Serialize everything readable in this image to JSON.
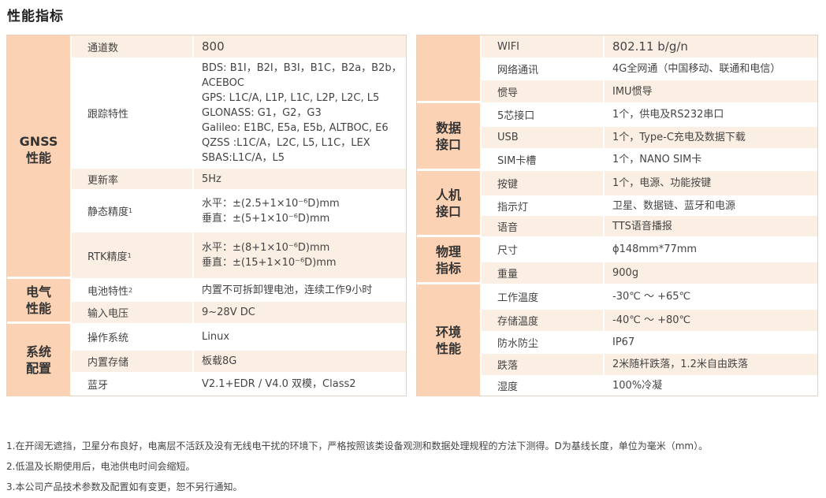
{
  "title": "性能指标",
  "left_table": {
    "categories": [
      {
        "label": "GNSS\n性能"
      },
      {
        "label": "电气\n性能"
      },
      {
        "label": "系统\n配置"
      }
    ],
    "rows": [
      {
        "label": "通道数",
        "value": "800"
      },
      {
        "label": "跟踪特性",
        "value": "BDS: B1I，B2I，B3I，B1C，B2a，B2b，\nACEBOC\nGPS: L1C/A, L1P, L1C, L2P, L2C, L5\nGLONASS: G1，G2，G3\nGalileo: E1BC, E5a, E5b, ALTBOC, E6\nQZSS :L1C/A，L2C, L5, L1C，LEX\nSBAS:L1C/A，L5"
      },
      {
        "label": "更新率",
        "value": "5Hz"
      },
      {
        "label": "静态精度",
        "sup": "1",
        "value": "水平：±(2.5+1×10⁻⁶D)mm\n垂直：±(5+1×10⁻⁶D)mm"
      },
      {
        "label": "RTK精度",
        "sup": "1",
        "value": "水平：±(8+1×10⁻⁶D)mm\n垂直：±(15+1×10⁻⁶D)mm"
      },
      {
        "label": "电池特性",
        "sup": "2",
        "value": "内置不可拆卸锂电池，连续工作9小时"
      },
      {
        "label": "输入电压",
        "value": "9~28V DC"
      },
      {
        "label": "操作系统",
        "value": "Linux"
      },
      {
        "label": "内置存储",
        "value": "板载8G"
      },
      {
        "label": "蓝牙",
        "value": "V2.1+EDR / V4.0 双模，Class2"
      }
    ]
  },
  "right_table": {
    "categories": [
      {
        "label": ""
      },
      {
        "label": "数据\n接口"
      },
      {
        "label": "人机\n接口"
      },
      {
        "label": "物理\n指标"
      },
      {
        "label": "环境\n性能"
      }
    ],
    "rows": [
      {
        "label": "WIFI",
        "value": "802.11 b/g/n"
      },
      {
        "label": "网络通讯",
        "value": "4G全网通（中国移动、联通和电信）"
      },
      {
        "label": "惯导",
        "value": "IMU惯导"
      },
      {
        "label": "5芯接口",
        "value": "1个，供电及RS232串口"
      },
      {
        "label": "USB",
        "value": "1个，Type-C充电及数据下载"
      },
      {
        "label": "SIM卡槽",
        "value": "1个，NANO SIM卡"
      },
      {
        "label": "按键",
        "value": "1个，电源、功能按键"
      },
      {
        "label": "指示灯",
        "value": "卫星、数据链、蓝牙和电源"
      },
      {
        "label": "语音",
        "value": "TTS语音播报"
      },
      {
        "label": "尺寸",
        "value": "ϕ148mm*77mm"
      },
      {
        "label": "重量",
        "value": "900g"
      },
      {
        "label": "工作温度",
        "value": "-30℃ ～ +65℃"
      },
      {
        "label": "存储温度",
        "value": "-40℃ ～ +80℃"
      },
      {
        "label": "防水防尘",
        "value": "IP67"
      },
      {
        "label": "跌落",
        "value": "2米随杆跌落，1.2米自由跌落"
      },
      {
        "label": "湿度",
        "value": "100%冷凝"
      }
    ]
  },
  "notes": [
    "1.在开阔无遮挡，卫星分布良好，电离层不活跃及没有无线电干扰的环境下，严格按照该类设备观测和数据处理规程的方法下测得。D为基线长度，单位为毫米（mm）。",
    "2.低温及长期使用后，电池供电时间会缩短。",
    "3.本公司产品技术参数及配置如有变更，恕不另行通知。"
  ],
  "colors": {
    "category_bg": "#fbd2b4",
    "stripe_bg": "#fbeee3"
  }
}
